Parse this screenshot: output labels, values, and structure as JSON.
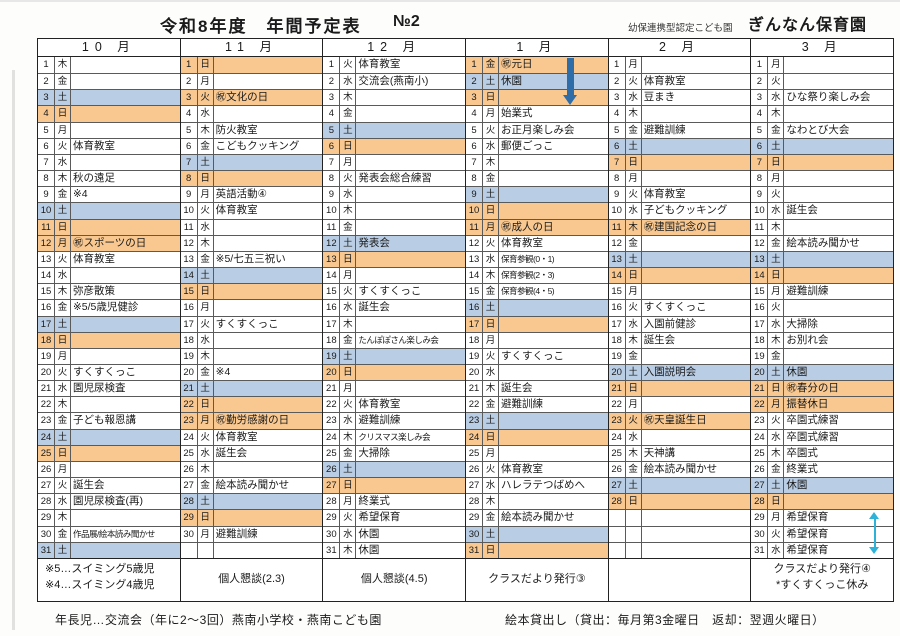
{
  "header": {
    "title": "令和8年度　年間予定表",
    "page_no": "№2",
    "org_type": "幼保連携型認定こども園",
    "org_name": "ぎんなん保育園"
  },
  "colors": {
    "sunday_holiday": "#f8c890",
    "saturday": "#b9cde4",
    "arrow_blue": "#2f6da8",
    "arrow_cyan": "#2fb2d8"
  },
  "bottom_notes": {
    "left": "年長児…交流会（年に2～3回）燕南小学校・燕南こども園",
    "right": "絵本貸出し（貸出：毎月第3金曜日　返却：翌週火曜日）"
  },
  "months": [
    {
      "label": "10 月",
      "footer": [
        "※5…スイミング5歳児",
        "※4…スイミング4歳児"
      ],
      "footer_style": "left",
      "days": [
        {
          "d": 1,
          "w": "木",
          "t": "",
          "h": ""
        },
        {
          "d": 2,
          "w": "金",
          "t": "",
          "h": ""
        },
        {
          "d": 3,
          "w": "土",
          "t": "",
          "h": "sat"
        },
        {
          "d": 4,
          "w": "日",
          "t": "",
          "h": "sun"
        },
        {
          "d": 5,
          "w": "月",
          "t": "",
          "h": ""
        },
        {
          "d": 6,
          "w": "火",
          "t": "体育教室",
          "h": ""
        },
        {
          "d": 7,
          "w": "水",
          "t": "",
          "h": ""
        },
        {
          "d": 8,
          "w": "木",
          "t": "秋の遠足",
          "h": ""
        },
        {
          "d": 9,
          "w": "金",
          "t": "※4",
          "h": ""
        },
        {
          "d": 10,
          "w": "土",
          "t": "",
          "h": "sat"
        },
        {
          "d": 11,
          "w": "日",
          "t": "",
          "h": "sun"
        },
        {
          "d": 12,
          "w": "月",
          "t": "㊗スポーツの日",
          "h": "hol"
        },
        {
          "d": 13,
          "w": "火",
          "t": "体育教室",
          "h": ""
        },
        {
          "d": 14,
          "w": "水",
          "t": "",
          "h": ""
        },
        {
          "d": 15,
          "w": "木",
          "t": "弥彦散策",
          "h": ""
        },
        {
          "d": 16,
          "w": "金",
          "t": "※5/5歳児健診",
          "h": ""
        },
        {
          "d": 17,
          "w": "土",
          "t": "",
          "h": "sat"
        },
        {
          "d": 18,
          "w": "日",
          "t": "",
          "h": "sun"
        },
        {
          "d": 19,
          "w": "月",
          "t": "",
          "h": ""
        },
        {
          "d": 20,
          "w": "火",
          "t": "すくすくっこ",
          "h": ""
        },
        {
          "d": 21,
          "w": "水",
          "t": "園児尿検査",
          "h": ""
        },
        {
          "d": 22,
          "w": "木",
          "t": "",
          "h": ""
        },
        {
          "d": 23,
          "w": "金",
          "t": "子ども報恩講",
          "h": ""
        },
        {
          "d": 24,
          "w": "土",
          "t": "",
          "h": "sat"
        },
        {
          "d": 25,
          "w": "日",
          "t": "",
          "h": "sun"
        },
        {
          "d": 26,
          "w": "月",
          "t": "",
          "h": ""
        },
        {
          "d": 27,
          "w": "火",
          "t": "誕生会",
          "h": ""
        },
        {
          "d": 28,
          "w": "水",
          "t": "園児尿検査(再)",
          "h": ""
        },
        {
          "d": 29,
          "w": "木",
          "t": "",
          "h": ""
        },
        {
          "d": 30,
          "w": "金",
          "t": "作品展/絵本読み聞かせ",
          "h": ""
        },
        {
          "d": 31,
          "w": "土",
          "t": "",
          "h": "sat"
        }
      ]
    },
    {
      "label": "11 月",
      "footer": [
        "個人懇談(2.3)"
      ],
      "footer_style": "mid",
      "days": [
        {
          "d": 1,
          "w": "日",
          "t": "",
          "h": "sun"
        },
        {
          "d": 2,
          "w": "月",
          "t": "",
          "h": ""
        },
        {
          "d": 3,
          "w": "火",
          "t": "㊗文化の日",
          "h": "hol"
        },
        {
          "d": 4,
          "w": "水",
          "t": "",
          "h": ""
        },
        {
          "d": 5,
          "w": "木",
          "t": "防火教室",
          "h": ""
        },
        {
          "d": 6,
          "w": "金",
          "t": "こどもクッキング",
          "h": ""
        },
        {
          "d": 7,
          "w": "土",
          "t": "",
          "h": "sat"
        },
        {
          "d": 8,
          "w": "日",
          "t": "",
          "h": "sun"
        },
        {
          "d": 9,
          "w": "月",
          "t": "英語活動④",
          "h": ""
        },
        {
          "d": 10,
          "w": "火",
          "t": "体育教室",
          "h": ""
        },
        {
          "d": 11,
          "w": "水",
          "t": "",
          "h": ""
        },
        {
          "d": 12,
          "w": "木",
          "t": "",
          "h": ""
        },
        {
          "d": 13,
          "w": "金",
          "t": "※5/七五三祝い",
          "h": ""
        },
        {
          "d": 14,
          "w": "土",
          "t": "",
          "h": "sat"
        },
        {
          "d": 15,
          "w": "日",
          "t": "",
          "h": "sun"
        },
        {
          "d": 16,
          "w": "月",
          "t": "",
          "h": ""
        },
        {
          "d": 17,
          "w": "火",
          "t": "すくすくっこ",
          "h": ""
        },
        {
          "d": 18,
          "w": "水",
          "t": "",
          "h": ""
        },
        {
          "d": 19,
          "w": "木",
          "t": "",
          "h": ""
        },
        {
          "d": 20,
          "w": "金",
          "t": "※4",
          "h": ""
        },
        {
          "d": 21,
          "w": "土",
          "t": "",
          "h": "sat"
        },
        {
          "d": 22,
          "w": "日",
          "t": "",
          "h": "sun"
        },
        {
          "d": 23,
          "w": "月",
          "t": "㊗勤労感謝の日",
          "h": "hol"
        },
        {
          "d": 24,
          "w": "火",
          "t": "体育教室",
          "h": ""
        },
        {
          "d": 25,
          "w": "水",
          "t": "誕生会",
          "h": ""
        },
        {
          "d": 26,
          "w": "木",
          "t": "",
          "h": ""
        },
        {
          "d": 27,
          "w": "金",
          "t": "絵本読み聞かせ",
          "h": ""
        },
        {
          "d": 28,
          "w": "土",
          "t": "",
          "h": "sat"
        },
        {
          "d": 29,
          "w": "日",
          "t": "",
          "h": "sun"
        },
        {
          "d": 30,
          "w": "月",
          "t": "避難訓練",
          "h": ""
        }
      ]
    },
    {
      "label": "12 月",
      "footer": [
        "個人懇談(4.5)"
      ],
      "footer_style": "mid",
      "days": [
        {
          "d": 1,
          "w": "火",
          "t": "体育教室",
          "h": ""
        },
        {
          "d": 2,
          "w": "水",
          "t": "交流会(燕南小)",
          "h": ""
        },
        {
          "d": 3,
          "w": "木",
          "t": "",
          "h": ""
        },
        {
          "d": 4,
          "w": "金",
          "t": "",
          "h": ""
        },
        {
          "d": 5,
          "w": "土",
          "t": "",
          "h": "sat"
        },
        {
          "d": 6,
          "w": "日",
          "t": "",
          "h": "sun"
        },
        {
          "d": 7,
          "w": "月",
          "t": "",
          "h": ""
        },
        {
          "d": 8,
          "w": "火",
          "t": "発表会総合練習",
          "h": ""
        },
        {
          "d": 9,
          "w": "水",
          "t": "",
          "h": ""
        },
        {
          "d": 10,
          "w": "木",
          "t": "",
          "h": ""
        },
        {
          "d": 11,
          "w": "金",
          "t": "",
          "h": ""
        },
        {
          "d": 12,
          "w": "土",
          "t": "発表会",
          "h": "sat"
        },
        {
          "d": 13,
          "w": "日",
          "t": "",
          "h": "sun"
        },
        {
          "d": 14,
          "w": "月",
          "t": "",
          "h": ""
        },
        {
          "d": 15,
          "w": "火",
          "t": "すくすくっこ",
          "h": ""
        },
        {
          "d": 16,
          "w": "水",
          "t": "誕生会",
          "h": ""
        },
        {
          "d": 17,
          "w": "木",
          "t": "",
          "h": ""
        },
        {
          "d": 18,
          "w": "金",
          "t": "たんぽぽさん楽しみ会",
          "h": ""
        },
        {
          "d": 19,
          "w": "土",
          "t": "",
          "h": "sat"
        },
        {
          "d": 20,
          "w": "日",
          "t": "",
          "h": "sun"
        },
        {
          "d": 21,
          "w": "月",
          "t": "",
          "h": ""
        },
        {
          "d": 22,
          "w": "火",
          "t": "体育教室",
          "h": ""
        },
        {
          "d": 23,
          "w": "水",
          "t": "避難訓練",
          "h": ""
        },
        {
          "d": 24,
          "w": "木",
          "t": "クリスマス楽しみ会",
          "h": ""
        },
        {
          "d": 25,
          "w": "金",
          "t": "大掃除",
          "h": ""
        },
        {
          "d": 26,
          "w": "土",
          "t": "",
          "h": "sat"
        },
        {
          "d": 27,
          "w": "日",
          "t": "",
          "h": "sun"
        },
        {
          "d": 28,
          "w": "月",
          "t": "終業式",
          "h": ""
        },
        {
          "d": 29,
          "w": "火",
          "t": "希望保育",
          "h": ""
        },
        {
          "d": 30,
          "w": "水",
          "t": "休園",
          "h": ""
        },
        {
          "d": 31,
          "w": "木",
          "t": "休園",
          "h": ""
        }
      ]
    },
    {
      "label": "1 月",
      "footer": [
        "クラスだより発行③"
      ],
      "footer_style": "mid",
      "arrow": "down",
      "days": [
        {
          "d": 1,
          "w": "金",
          "t": "㊗元日",
          "h": "hol"
        },
        {
          "d": 2,
          "w": "土",
          "t": "休園",
          "h": "sat"
        },
        {
          "d": 3,
          "w": "日",
          "t": "",
          "h": "sun"
        },
        {
          "d": 4,
          "w": "月",
          "t": "始業式",
          "h": ""
        },
        {
          "d": 5,
          "w": "火",
          "t": "お正月楽しみ会",
          "h": ""
        },
        {
          "d": 6,
          "w": "水",
          "t": "郵便ごっこ",
          "h": ""
        },
        {
          "d": 7,
          "w": "木",
          "t": "",
          "h": ""
        },
        {
          "d": 8,
          "w": "金",
          "t": "",
          "h": ""
        },
        {
          "d": 9,
          "w": "土",
          "t": "",
          "h": "sat"
        },
        {
          "d": 10,
          "w": "日",
          "t": "",
          "h": "sun"
        },
        {
          "d": 11,
          "w": "月",
          "t": "㊗成人の日",
          "h": "hol"
        },
        {
          "d": 12,
          "w": "火",
          "t": "体育教室",
          "h": ""
        },
        {
          "d": 13,
          "w": "水",
          "t": "保育参観(0・1)",
          "h": ""
        },
        {
          "d": 14,
          "w": "木",
          "t": "保育参観(2・3)",
          "h": ""
        },
        {
          "d": 15,
          "w": "金",
          "t": "保育参観(4・5)",
          "h": ""
        },
        {
          "d": 16,
          "w": "土",
          "t": "",
          "h": "sat"
        },
        {
          "d": 17,
          "w": "日",
          "t": "",
          "h": "sun"
        },
        {
          "d": 18,
          "w": "月",
          "t": "",
          "h": ""
        },
        {
          "d": 19,
          "w": "火",
          "t": "すくすくっこ",
          "h": ""
        },
        {
          "d": 20,
          "w": "水",
          "t": "",
          "h": ""
        },
        {
          "d": 21,
          "w": "木",
          "t": "誕生会",
          "h": ""
        },
        {
          "d": 22,
          "w": "金",
          "t": "避難訓練",
          "h": ""
        },
        {
          "d": 23,
          "w": "土",
          "t": "",
          "h": "sat"
        },
        {
          "d": 24,
          "w": "日",
          "t": "",
          "h": "sun"
        },
        {
          "d": 25,
          "w": "月",
          "t": "",
          "h": ""
        },
        {
          "d": 26,
          "w": "火",
          "t": "体育教室",
          "h": ""
        },
        {
          "d": 27,
          "w": "水",
          "t": "ハレラテつばめへ",
          "h": ""
        },
        {
          "d": 28,
          "w": "木",
          "t": "",
          "h": ""
        },
        {
          "d": 29,
          "w": "金",
          "t": "絵本読み聞かせ",
          "h": ""
        },
        {
          "d": 30,
          "w": "土",
          "t": "",
          "h": "sat"
        },
        {
          "d": 31,
          "w": "日",
          "t": "",
          "h": "sun"
        }
      ]
    },
    {
      "label": "2 月",
      "footer": [],
      "footer_style": "mid",
      "days": [
        {
          "d": 1,
          "w": "月",
          "t": "",
          "h": ""
        },
        {
          "d": 2,
          "w": "火",
          "t": "体育教室",
          "h": ""
        },
        {
          "d": 3,
          "w": "水",
          "t": "豆まき",
          "h": ""
        },
        {
          "d": 4,
          "w": "木",
          "t": "",
          "h": ""
        },
        {
          "d": 5,
          "w": "金",
          "t": "避難訓練",
          "h": ""
        },
        {
          "d": 6,
          "w": "土",
          "t": "",
          "h": "sat"
        },
        {
          "d": 7,
          "w": "日",
          "t": "",
          "h": "sun"
        },
        {
          "d": 8,
          "w": "月",
          "t": "",
          "h": ""
        },
        {
          "d": 9,
          "w": "火",
          "t": "体育教室",
          "h": ""
        },
        {
          "d": 10,
          "w": "水",
          "t": "子どもクッキング",
          "h": ""
        },
        {
          "d": 11,
          "w": "木",
          "t": "㊗建国記念の日",
          "h": "hol"
        },
        {
          "d": 12,
          "w": "金",
          "t": "",
          "h": ""
        },
        {
          "d": 13,
          "w": "土",
          "t": "",
          "h": "sat"
        },
        {
          "d": 14,
          "w": "日",
          "t": "",
          "h": "sun"
        },
        {
          "d": 15,
          "w": "月",
          "t": "",
          "h": ""
        },
        {
          "d": 16,
          "w": "火",
          "t": "すくすくっこ",
          "h": ""
        },
        {
          "d": 17,
          "w": "水",
          "t": "入園前健診",
          "h": ""
        },
        {
          "d": 18,
          "w": "木",
          "t": "誕生会",
          "h": ""
        },
        {
          "d": 19,
          "w": "金",
          "t": "",
          "h": ""
        },
        {
          "d": 20,
          "w": "土",
          "t": "入園説明会",
          "h": "sat"
        },
        {
          "d": 21,
          "w": "日",
          "t": "",
          "h": "sun"
        },
        {
          "d": 22,
          "w": "月",
          "t": "",
          "h": ""
        },
        {
          "d": 23,
          "w": "火",
          "t": "㊗天皇誕生日",
          "h": "hol"
        },
        {
          "d": 24,
          "w": "水",
          "t": "",
          "h": ""
        },
        {
          "d": 25,
          "w": "木",
          "t": "天神講",
          "h": ""
        },
        {
          "d": 26,
          "w": "金",
          "t": "絵本読み聞かせ",
          "h": ""
        },
        {
          "d": 27,
          "w": "土",
          "t": "",
          "h": "sat"
        },
        {
          "d": 28,
          "w": "日",
          "t": "",
          "h": "sun"
        }
      ]
    },
    {
      "label": "3 月",
      "footer": [
        "クラスだより発行④",
        "*すくすくっこ休み"
      ],
      "footer_style": "left-indent",
      "arrow": "double",
      "days": [
        {
          "d": 1,
          "w": "月",
          "t": "",
          "h": ""
        },
        {
          "d": 2,
          "w": "火",
          "t": "",
          "h": ""
        },
        {
          "d": 3,
          "w": "水",
          "t": "ひな祭り楽しみ会",
          "h": ""
        },
        {
          "d": 4,
          "w": "木",
          "t": "",
          "h": ""
        },
        {
          "d": 5,
          "w": "金",
          "t": "なわとび大会",
          "h": ""
        },
        {
          "d": 6,
          "w": "土",
          "t": "",
          "h": "sat"
        },
        {
          "d": 7,
          "w": "日",
          "t": "",
          "h": "sun"
        },
        {
          "d": 8,
          "w": "月",
          "t": "",
          "h": ""
        },
        {
          "d": 9,
          "w": "火",
          "t": "",
          "h": ""
        },
        {
          "d": 10,
          "w": "水",
          "t": "誕生会",
          "h": ""
        },
        {
          "d": 11,
          "w": "木",
          "t": "",
          "h": ""
        },
        {
          "d": 12,
          "w": "金",
          "t": "絵本読み聞かせ",
          "h": ""
        },
        {
          "d": 13,
          "w": "土",
          "t": "",
          "h": "sat"
        },
        {
          "d": 14,
          "w": "日",
          "t": "",
          "h": "sun"
        },
        {
          "d": 15,
          "w": "月",
          "t": "避難訓練",
          "h": ""
        },
        {
          "d": 16,
          "w": "火",
          "t": "",
          "h": ""
        },
        {
          "d": 17,
          "w": "水",
          "t": "大掃除",
          "h": ""
        },
        {
          "d": 18,
          "w": "木",
          "t": "お別れ会",
          "h": ""
        },
        {
          "d": 19,
          "w": "金",
          "t": "",
          "h": ""
        },
        {
          "d": 20,
          "w": "土",
          "t": "休園",
          "h": "sat"
        },
        {
          "d": 21,
          "w": "日",
          "t": "㊗春分の日",
          "h": "sun"
        },
        {
          "d": 22,
          "w": "月",
          "t": "振替休日",
          "h": "hol"
        },
        {
          "d": 23,
          "w": "火",
          "t": "卒園式練習",
          "h": ""
        },
        {
          "d": 24,
          "w": "水",
          "t": "卒園式練習",
          "h": ""
        },
        {
          "d": 25,
          "w": "木",
          "t": "卒園式",
          "h": ""
        },
        {
          "d": 26,
          "w": "金",
          "t": "終業式",
          "h": ""
        },
        {
          "d": 27,
          "w": "土",
          "t": "休園",
          "h": "sat"
        },
        {
          "d": 28,
          "w": "日",
          "t": "",
          "h": "sun"
        },
        {
          "d": 29,
          "w": "月",
          "t": "希望保育",
          "h": ""
        },
        {
          "d": 30,
          "w": "火",
          "t": "希望保育",
          "h": ""
        },
        {
          "d": 31,
          "w": "水",
          "t": "希望保育",
          "h": ""
        }
      ]
    }
  ]
}
